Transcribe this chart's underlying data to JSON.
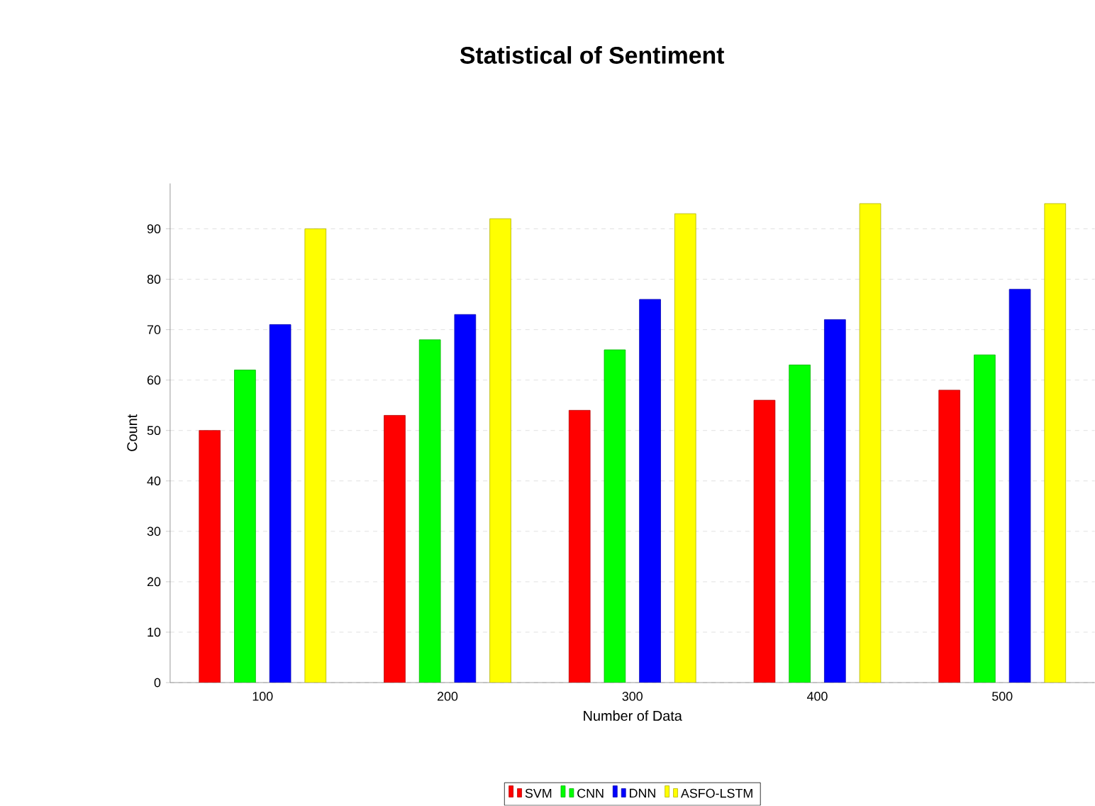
{
  "chart_data": {
    "type": "bar",
    "title": "Statistical of Sentiment",
    "xlabel": "Number of Data",
    "ylabel": "Count",
    "categories": [
      "100",
      "200",
      "300",
      "400",
      "500"
    ],
    "series": [
      {
        "name": "SVM",
        "color": "#ff0000",
        "values": [
          50,
          53,
          54,
          56,
          58
        ]
      },
      {
        "name": "CNN",
        "color": "#00ff00",
        "values": [
          62,
          68,
          66,
          63,
          65
        ]
      },
      {
        "name": "DNN",
        "color": "#0000ff",
        "values": [
          71,
          73,
          76,
          72,
          78
        ]
      },
      {
        "name": "ASFO-LSTM",
        "color": "#ffff00",
        "values": [
          90,
          92,
          93,
          95,
          95
        ]
      }
    ],
    "ylim": [
      0,
      99
    ],
    "yticks": [
      0,
      10,
      20,
      30,
      40,
      50,
      60,
      70,
      80,
      90
    ],
    "grid": "y",
    "legend": "bottom"
  }
}
